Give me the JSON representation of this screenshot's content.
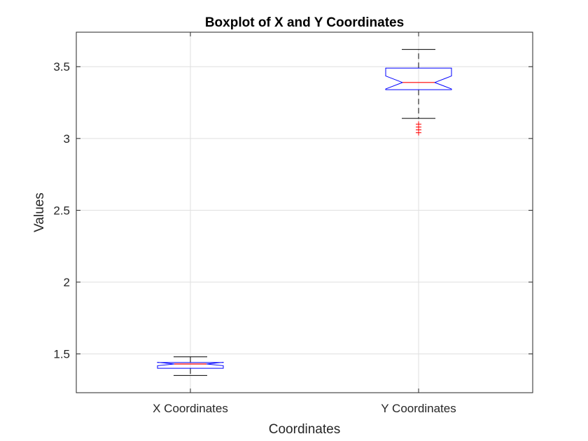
{
  "chart_data": {
    "type": "boxplot",
    "title": "Boxplot of X and Y Coordinates",
    "xlabel": "Coordinates",
    "ylabel": "Values",
    "categories": [
      "X Coordinates",
      "Y Coordinates"
    ],
    "ylim": [
      1.23,
      3.74
    ],
    "yticks": [
      1.5,
      2,
      2.5,
      3,
      3.5
    ],
    "ytick_labels": [
      "1.5",
      "2",
      "2.5",
      "3",
      "3.5"
    ],
    "grid": true,
    "notched": true,
    "boxes": [
      {
        "category": "X Coordinates",
        "whisker_low": 1.35,
        "q1": 1.4,
        "median": 1.43,
        "q3": 1.44,
        "whisker_high": 1.48,
        "notch_low": 1.418,
        "notch_high": 1.442,
        "outliers": []
      },
      {
        "category": "Y Coordinates",
        "whisker_low": 3.14,
        "q1": 3.34,
        "median": 3.39,
        "q3": 3.49,
        "whisker_high": 3.62,
        "notch_low": 3.345,
        "notch_high": 3.435,
        "outliers": [
          3.04,
          3.06,
          3.08,
          3.1
        ]
      }
    ],
    "colors": {
      "box": "#0000ff",
      "median": "#ff0000",
      "whisker": "#000000",
      "outlier": "#ff0000",
      "grid": "#dfdfdf",
      "axis": "#262626"
    }
  }
}
